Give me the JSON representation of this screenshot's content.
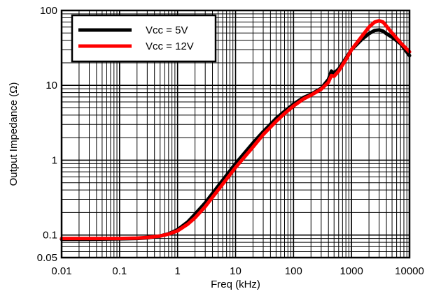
{
  "chart_data": {
    "type": "line",
    "title": "",
    "xlabel": "Freq (kHz)",
    "ylabel": "Output Impedance (Ω)",
    "xscale": "log",
    "yscale": "log",
    "xlim": [
      0.01,
      10000
    ],
    "ylim": [
      0.05,
      100
    ],
    "grid": true,
    "legend_position": "top-left",
    "x_ticks": [
      {
        "value": 0.01,
        "label": "0.01"
      },
      {
        "value": 0.1,
        "label": "0.1"
      },
      {
        "value": 1,
        "label": "1"
      },
      {
        "value": 10,
        "label": "10"
      },
      {
        "value": 100,
        "label": "100"
      },
      {
        "value": 1000,
        "label": "1000"
      },
      {
        "value": 10000,
        "label": "10000"
      }
    ],
    "y_ticks": [
      {
        "value": 0.05,
        "label": "0.05"
      },
      {
        "value": 0.1,
        "label": "0.1"
      },
      {
        "value": 1,
        "label": "1"
      },
      {
        "value": 10,
        "label": "10"
      },
      {
        "value": 100,
        "label": "100"
      }
    ],
    "series": [
      {
        "name": "Vcc = 5V",
        "color": "#000000",
        "x": [
          0.01,
          0.03,
          0.1,
          0.2,
          0.3,
          0.5,
          0.7,
          1,
          1.5,
          2,
          3,
          5,
          7,
          10,
          20,
          30,
          50,
          70,
          100,
          150,
          200,
          300,
          400,
          450,
          500,
          600,
          800,
          1000,
          1500,
          2000,
          2500,
          3000,
          3500,
          4000,
          5000,
          7000,
          10000
        ],
        "y": [
          0.088,
          0.088,
          0.089,
          0.09,
          0.092,
          0.097,
          0.104,
          0.118,
          0.15,
          0.19,
          0.27,
          0.45,
          0.63,
          0.9,
          1.7,
          2.4,
          3.6,
          4.5,
          5.6,
          6.9,
          7.6,
          9.1,
          12,
          15.5,
          14.5,
          16.5,
          23,
          30,
          41,
          49,
          54,
          55,
          53,
          49,
          44,
          36,
          25
        ]
      },
      {
        "name": "Vcc = 12V",
        "color": "#ff0000",
        "x": [
          0.01,
          0.03,
          0.1,
          0.2,
          0.3,
          0.5,
          0.7,
          1,
          1.5,
          2,
          3,
          5,
          7,
          10,
          20,
          30,
          50,
          70,
          100,
          150,
          200,
          300,
          400,
          450,
          500,
          600,
          800,
          1000,
          1500,
          2000,
          2500,
          3000,
          3500,
          4000,
          5000,
          7000,
          10000
        ],
        "y": [
          0.09,
          0.09,
          0.09,
          0.091,
          0.093,
          0.097,
          0.103,
          0.114,
          0.14,
          0.17,
          0.24,
          0.4,
          0.56,
          0.8,
          1.5,
          2.2,
          3.3,
          4.2,
          5.3,
          6.6,
          7.4,
          8.9,
          11,
          13.5,
          13.2,
          15.5,
          22,
          30,
          45,
          60,
          70,
          73,
          70,
          62,
          50,
          37,
          28
        ]
      }
    ]
  }
}
